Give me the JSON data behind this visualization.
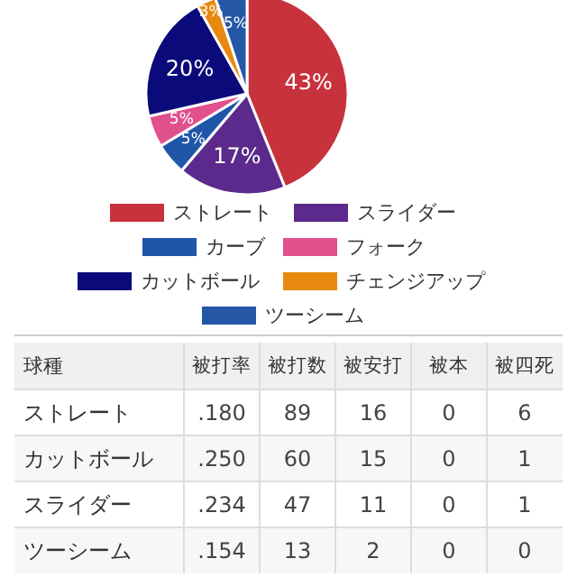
{
  "chart_data": [
    {
      "type": "pie",
      "categories": [
        "ストレート",
        "スライダー",
        "カーブ",
        "フォーク",
        "カットボール",
        "チェンジアップ",
        "ツーシーム"
      ],
      "values": [
        43,
        17,
        5,
        5,
        20,
        3,
        5
      ],
      "colors": [
        "#c8323c",
        "#5b2a8c",
        "#1f56a8",
        "#e0508c",
        "#0a0a7a",
        "#e8890f",
        "#2458a6"
      ],
      "value_labels": [
        "43%",
        "17%",
        "5%",
        "5%",
        "20%",
        "3%",
        "5%"
      ],
      "legend": "bottom"
    },
    {
      "type": "other",
      "ylabel": "球種",
      "categories": [
        "被打率",
        "被打数",
        "被安打",
        "被本",
        "被四死"
      ],
      "y_categories": [
        "ストレート",
        "カットボール",
        "スライダー",
        "ツーシーム"
      ],
      "cell_labels": [
        [
          ".180",
          "89",
          "16",
          "0",
          "6"
        ],
        [
          ".250",
          "60",
          "15",
          "0",
          "1"
        ],
        [
          ".234",
          "47",
          "11",
          "0",
          "1"
        ],
        [
          ".154",
          "13",
          "2",
          "0",
          "0"
        ]
      ]
    }
  ]
}
